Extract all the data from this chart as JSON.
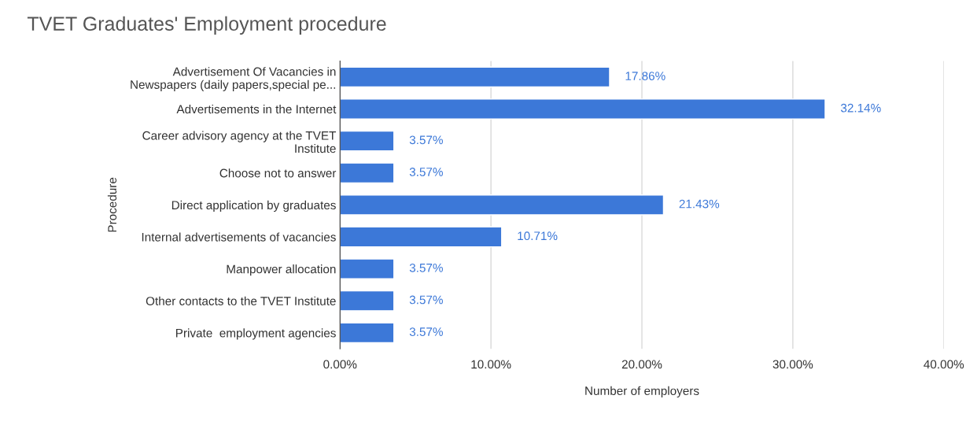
{
  "chart_data": {
    "type": "bar",
    "orientation": "horizontal",
    "title": "TVET Graduates' Employment procedure",
    "xlabel": "Number of employers",
    "ylabel": "Procedure",
    "categories": [
      "Advertisement Of Vacancies in\nNewspapers (daily papers,special pe...",
      "Advertisements in the Internet",
      "Career advisory agency at the TVET\nInstitute",
      "Choose not to answer",
      "Direct application by graduates",
      "Internal advertisements of vacancies",
      "Manpower allocation",
      "Other contacts to the TVET Institute",
      "Private  employment agencies"
    ],
    "values": [
      17.86,
      32.14,
      3.57,
      3.57,
      21.43,
      10.71,
      3.57,
      3.57,
      3.57
    ],
    "value_labels": [
      "17.86%",
      "32.14%",
      "3.57%",
      "3.57%",
      "21.43%",
      "10.71%",
      "3.57%",
      "3.57%",
      "3.57%"
    ],
    "color": "#3c78d8",
    "xlim": [
      0,
      40
    ],
    "xticks": [
      {
        "value": 0,
        "label": "0.00%"
      },
      {
        "value": 10,
        "label": "10.00%"
      },
      {
        "value": 20,
        "label": "20.00%"
      },
      {
        "value": 30,
        "label": "30.00%"
      },
      {
        "value": 40,
        "label": "40.00%"
      }
    ],
    "grid": "x"
  }
}
